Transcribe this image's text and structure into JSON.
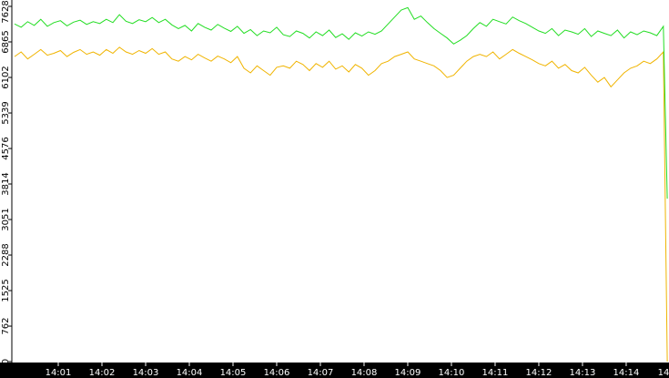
{
  "chart_data": {
    "type": "line",
    "x": [
      0,
      0.15,
      0.3,
      0.45,
      0.6,
      0.75,
      0.9,
      1.05,
      1.2,
      1.35,
      1.5,
      1.65,
      1.8,
      1.95,
      2.1,
      2.25,
      2.4,
      2.55,
      2.7,
      2.85,
      3,
      3.15,
      3.3,
      3.45,
      3.6,
      3.75,
      3.9,
      4.05,
      4.2,
      4.35,
      4.5,
      4.65,
      4.8,
      4.95,
      5.1,
      5.25,
      5.4,
      5.55,
      5.7,
      5.85,
      6,
      6.15,
      6.3,
      6.45,
      6.6,
      6.75,
      6.9,
      7.05,
      7.2,
      7.35,
      7.5,
      7.65,
      7.8,
      7.95,
      8.1,
      8.25,
      8.4,
      8.55,
      8.7,
      8.85,
      9,
      9.15,
      9.3,
      9.45,
      9.6,
      9.75,
      9.9,
      10.05,
      10.2,
      10.35,
      10.5,
      10.65,
      10.8,
      10.95,
      11.1,
      11.25,
      11.4,
      11.55,
      11.7,
      11.85,
      12,
      12.15,
      12.3,
      12.45,
      12.6,
      12.75,
      12.9,
      13.05,
      13.2,
      13.35,
      13.5,
      13.65,
      13.8,
      13.95,
      14.1,
      14.25,
      14.4,
      14.55,
      14.7,
      14.85,
      14.94
    ],
    "series": [
      {
        "color": "#22dd22",
        "values": [
          7250,
          7180,
          7300,
          7220,
          7350,
          7200,
          7280,
          7320,
          7210,
          7290,
          7330,
          7240,
          7300,
          7260,
          7350,
          7280,
          7450,
          7310,
          7260,
          7340,
          7300,
          7390,
          7280,
          7350,
          7230,
          7150,
          7220,
          7100,
          7260,
          7180,
          7120,
          7240,
          7160,
          7090,
          7200,
          7050,
          7130,
          7000,
          7100,
          7060,
          7180,
          7020,
          6980,
          7100,
          7050,
          6950,
          7080,
          7000,
          7120,
          6960,
          7040,
          6920,
          7060,
          6990,
          7080,
          7030,
          7100,
          7250,
          7400,
          7550,
          7600,
          7350,
          7420,
          7280,
          7150,
          7050,
          6950,
          6820,
          6900,
          7000,
          7150,
          7280,
          7200,
          7350,
          7300,
          7250,
          7400,
          7320,
          7260,
          7180,
          7100,
          7050,
          7150,
          7000,
          7120,
          7080,
          7030,
          7150,
          6980,
          7100,
          7050,
          7000,
          7120,
          6950,
          7080,
          7020,
          7100,
          7060,
          7000,
          7200,
          3500
        ]
      },
      {
        "color": "#f0b400",
        "values": [
          6550,
          6650,
          6500,
          6600,
          6700,
          6580,
          6620,
          6680,
          6550,
          6640,
          6700,
          6600,
          6650,
          6580,
          6700,
          6620,
          6750,
          6650,
          6600,
          6680,
          6620,
          6720,
          6600,
          6650,
          6500,
          6450,
          6550,
          6480,
          6600,
          6520,
          6450,
          6560,
          6500,
          6420,
          6550,
          6300,
          6200,
          6350,
          6250,
          6150,
          6320,
          6350,
          6300,
          6450,
          6380,
          6250,
          6400,
          6320,
          6450,
          6280,
          6350,
          6220,
          6380,
          6300,
          6150,
          6250,
          6400,
          6450,
          6550,
          6600,
          6650,
          6500,
          6450,
          6400,
          6350,
          6250,
          6100,
          6150,
          6300,
          6450,
          6550,
          6600,
          6550,
          6650,
          6500,
          6600,
          6700,
          6620,
          6550,
          6480,
          6400,
          6350,
          6450,
          6300,
          6380,
          6250,
          6200,
          6320,
          6150,
          6000,
          6100,
          5900,
          6050,
          6200,
          6300,
          6350,
          6450,
          6400,
          6500,
          6650,
          0
        ]
      }
    ],
    "xlim": [
      -0.0625,
      14.98
    ],
    "xticks": [
      {
        "value": 1,
        "label": "14:01"
      },
      {
        "value": 2,
        "label": "14:02"
      },
      {
        "value": 3,
        "label": "14:03"
      },
      {
        "value": 4,
        "label": "14:04"
      },
      {
        "value": 5,
        "label": "14:05"
      },
      {
        "value": 6,
        "label": "14:06"
      },
      {
        "value": 7,
        "label": "14:07"
      },
      {
        "value": 8,
        "label": "14:08"
      },
      {
        "value": 9,
        "label": "14:09"
      },
      {
        "value": 10,
        "label": "14:10"
      },
      {
        "value": 11,
        "label": "14:11"
      },
      {
        "value": 12,
        "label": "14:12"
      },
      {
        "value": 13,
        "label": "14:13"
      },
      {
        "value": 14,
        "label": "14:14"
      },
      {
        "value": 15,
        "label": "14"
      }
    ],
    "ylim": [
      0,
      7628
    ],
    "yticks": [
      0,
      762,
      1525,
      2288,
      3051,
      3814,
      4576,
      5339,
      6102,
      6865,
      7628
    ]
  }
}
